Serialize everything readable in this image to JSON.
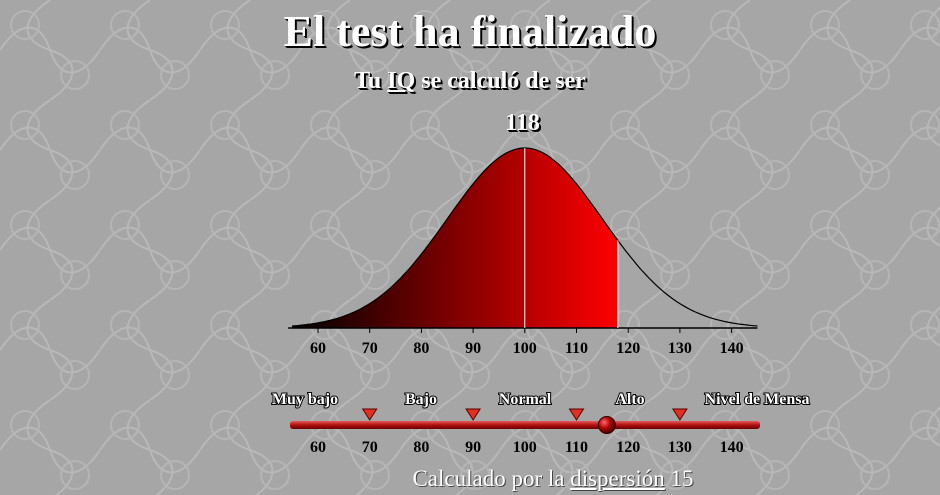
{
  "title": "El test ha finalizado",
  "subtitle": {
    "prefix": "Tu",
    "iq": "IQ",
    "suffix": "se calculó de ser"
  },
  "iq_score": "118",
  "footer": {
    "prefix": "Calculado por la",
    "term": "dispersión",
    "value": "15"
  },
  "chart_data": {
    "type": "area",
    "distribution": "normal",
    "mean": 100,
    "std_dev": 15,
    "xlim": [
      55,
      145
    ],
    "x_ticks": [
      60,
      70,
      80,
      90,
      100,
      110,
      120,
      130,
      140
    ],
    "shaded_to": 118
  },
  "scale": {
    "ticks": [
      "60",
      "70",
      "80",
      "90",
      "100",
      "110",
      "120",
      "130",
      "140"
    ],
    "categories": [
      "Muy bajo",
      "Bajo",
      "Normal",
      "Alto",
      "Nivel de Mensa"
    ],
    "marker_values": [
      70,
      90,
      110,
      130
    ],
    "indicator_value": 118
  },
  "colors": {
    "curve_dark": "#000000",
    "curve_bright": "#ff0000",
    "bar": "#c01818",
    "marker": "#e0301f"
  }
}
